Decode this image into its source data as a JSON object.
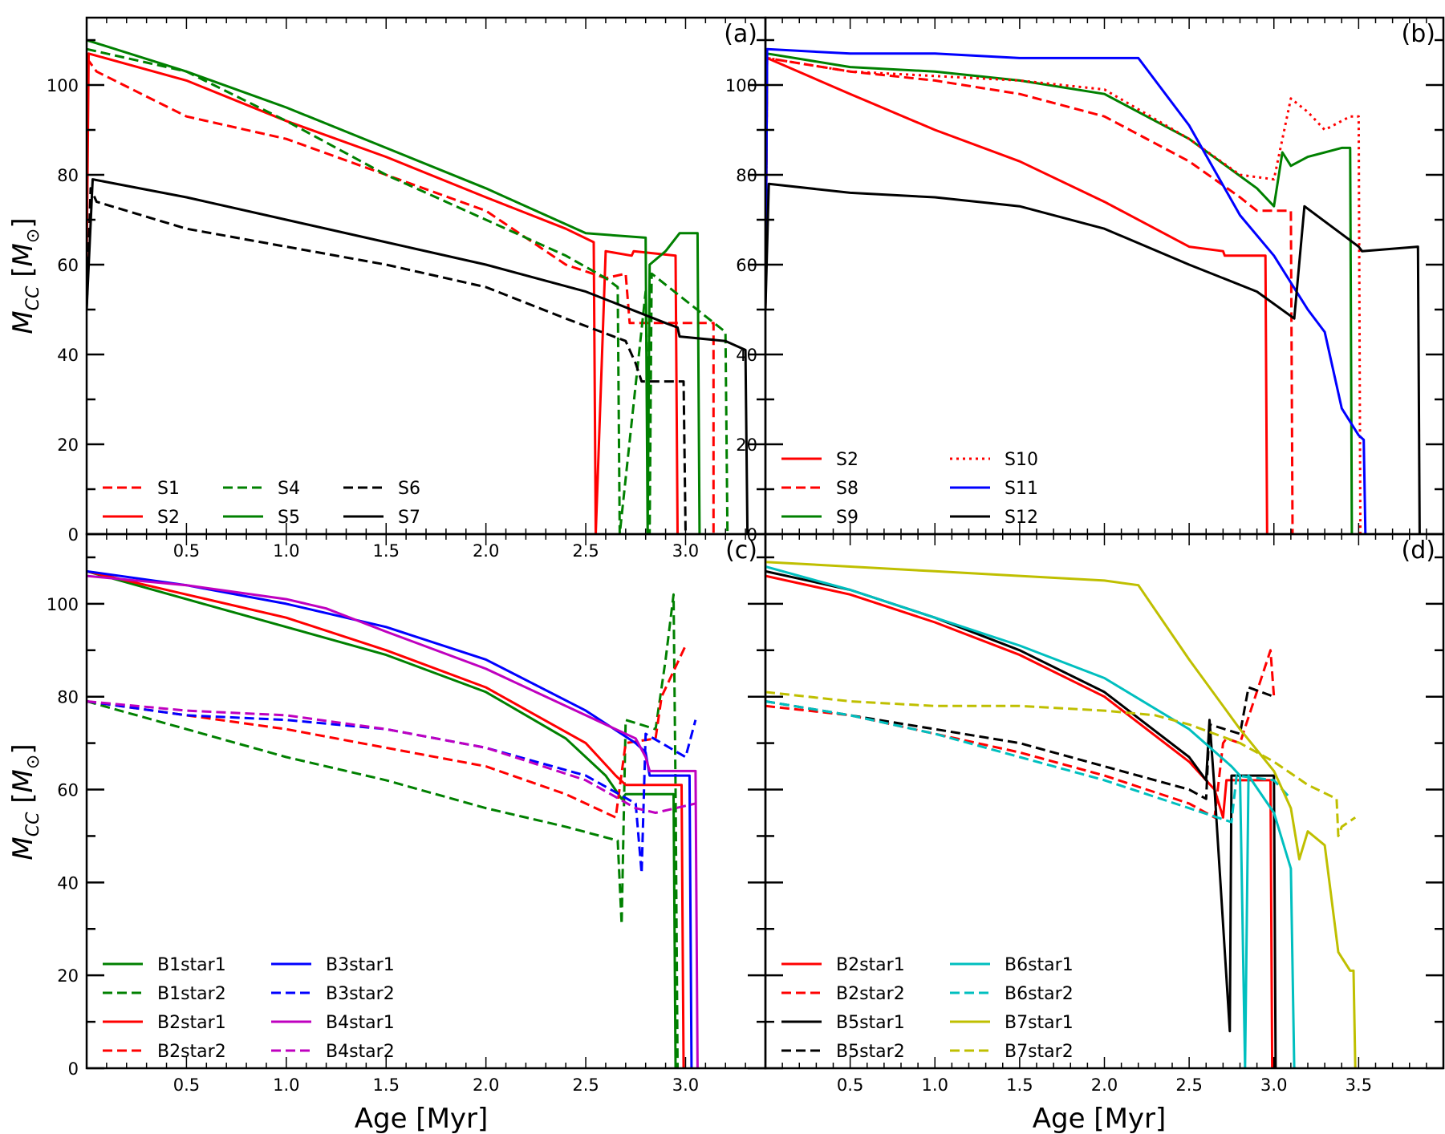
{
  "figure": {
    "xlabel": "Age [Myr]",
    "ylabel_main": "M",
    "ylabel_sub": "CC",
    "ylabel_unit_open": " [",
    "ylabel_unit_main": "M",
    "ylabel_unit_sub": "⊙",
    "ylabel_unit_close": "]"
  },
  "colors": {
    "red": "#ff0000",
    "green": "#008000",
    "black": "#000000",
    "blue": "#0000ff",
    "magenta": "#bf00bf",
    "cyan": "#00bfbf",
    "olive": "#bfbf00"
  },
  "chart_data": [
    {
      "type": "line",
      "panel": "(a)",
      "xlim": [
        0,
        3.4
      ],
      "ylim": [
        0,
        115
      ],
      "xticks": [
        "0.5",
        "1.0",
        "1.5",
        "2.0",
        "2.5",
        "3.0"
      ],
      "yticks": [
        "0",
        "20",
        "40",
        "60",
        "80",
        "100"
      ],
      "legend_placement": "lower-left",
      "series": [
        {
          "name": "S1",
          "color": "#ff0000",
          "style": "dashed",
          "x": [
            0,
            0.05,
            0.5,
            1.0,
            1.5,
            2.0,
            2.4,
            2.6,
            2.7,
            2.72,
            2.72,
            3.14,
            3.14,
            3.16
          ],
          "y": [
            106,
            103,
            93,
            88,
            80,
            72,
            60,
            57,
            58,
            47,
            47,
            47,
            0,
            0
          ]
        },
        {
          "name": "S2",
          "color": "#ff0000",
          "style": "solid",
          "x": [
            0,
            0.01,
            0.5,
            1.0,
            1.5,
            2.0,
            2.4,
            2.54,
            2.55,
            2.6,
            2.73,
            2.74,
            2.95,
            2.96
          ],
          "y": [
            60,
            107,
            101,
            92,
            84,
            75,
            68,
            65,
            0,
            63,
            62,
            63,
            62,
            0
          ]
        },
        {
          "name": "S4",
          "color": "#008000",
          "style": "dashed",
          "x": [
            0,
            0.5,
            1.0,
            1.5,
            2.0,
            2.4,
            2.6,
            2.66,
            2.67,
            2.8,
            2.82,
            2.83,
            3.2,
            3.21
          ],
          "y": [
            108,
            103,
            92,
            80,
            70,
            62,
            57,
            55,
            0,
            54,
            0,
            58,
            45,
            0
          ]
        },
        {
          "name": "S5",
          "color": "#008000",
          "style": "solid",
          "x": [
            0,
            0.5,
            1.0,
            1.5,
            2.0,
            2.5,
            2.8,
            2.81,
            2.82,
            2.9,
            2.97,
            3.06,
            3.07
          ],
          "y": [
            110,
            103,
            95,
            86,
            77,
            67,
            66,
            0,
            60,
            63,
            67,
            67,
            0
          ]
        },
        {
          "name": "S6",
          "color": "#000000",
          "style": "dashed",
          "x": [
            0,
            0.02,
            0.05,
            0.5,
            1.0,
            1.5,
            2.0,
            2.4,
            2.7,
            2.75,
            2.78,
            2.99,
            3.0
          ],
          "y": [
            50,
            77,
            74,
            68,
            64,
            60,
            55,
            48,
            43,
            38,
            34,
            34,
            0
          ]
        },
        {
          "name": "S7",
          "color": "#000000",
          "style": "solid",
          "x": [
            0,
            0.03,
            0.5,
            1.0,
            1.5,
            2.0,
            2.5,
            2.9,
            2.96,
            2.97,
            3.2,
            3.3,
            3.31
          ],
          "y": [
            50,
            79,
            75,
            70,
            65,
            60,
            54,
            47,
            46,
            44,
            43,
            41,
            0
          ]
        }
      ]
    },
    {
      "type": "line",
      "panel": "(b)",
      "xlim": [
        0,
        4.0
      ],
      "ylim": [
        0,
        115
      ],
      "xticks": [],
      "yticks": [
        "0",
        "20",
        "40",
        "60",
        "80",
        "100"
      ],
      "legend_placement": "lower-left",
      "series": [
        {
          "name": "S2",
          "color": "#ff0000",
          "style": "solid",
          "x": [
            0,
            0.01,
            0.5,
            1.0,
            1.5,
            2.0,
            2.5,
            2.7,
            2.71,
            2.95,
            2.96
          ],
          "y": [
            50,
            106,
            98,
            90,
            83,
            74,
            64,
            63,
            62,
            62,
            0
          ]
        },
        {
          "name": "S8",
          "color": "#ff0000",
          "style": "dashed",
          "x": [
            0,
            0.01,
            0.5,
            1.0,
            1.5,
            2.0,
            2.5,
            2.8,
            2.9,
            3.0,
            3.1,
            3.11
          ],
          "y": [
            50,
            106,
            103,
            101,
            98,
            93,
            83,
            75,
            72,
            72,
            72,
            0
          ]
        },
        {
          "name": "S9",
          "color": "#008000",
          "style": "solid",
          "x": [
            0,
            0.01,
            0.5,
            1.0,
            1.5,
            2.0,
            2.5,
            2.9,
            3.0,
            3.05,
            3.1,
            3.2,
            3.4,
            3.45,
            3.46
          ],
          "y": [
            50,
            107,
            104,
            103,
            101,
            98,
            88,
            77,
            73,
            85,
            82,
            84,
            86,
            86,
            0
          ]
        },
        {
          "name": "S10",
          "color": "#ff0000",
          "style": "dotted",
          "x": [
            0,
            0.01,
            0.5,
            1.0,
            1.5,
            2.0,
            2.5,
            2.8,
            3.0,
            3.1,
            3.2,
            3.3,
            3.45,
            3.5,
            3.51
          ],
          "y": [
            50,
            106,
            103,
            102,
            101,
            99,
            88,
            80,
            79,
            97,
            94,
            90,
            93,
            93,
            0
          ]
        },
        {
          "name": "S11",
          "color": "#0000ff",
          "style": "solid",
          "x": [
            0,
            0.01,
            0.5,
            1.0,
            1.5,
            2.0,
            2.2,
            2.5,
            2.8,
            3.0,
            3.15,
            3.2,
            3.3,
            3.4,
            3.5,
            3.53,
            3.54
          ],
          "y": [
            50,
            108,
            107,
            107,
            106,
            106,
            106,
            91,
            71,
            62,
            53,
            50,
            45,
            28,
            22,
            21,
            0
          ]
        },
        {
          "name": "S12",
          "color": "#000000",
          "style": "solid",
          "x": [
            0,
            0.02,
            0.5,
            1.0,
            1.5,
            2.0,
            2.5,
            2.9,
            3.12,
            3.18,
            3.5,
            3.52,
            3.85,
            3.86
          ],
          "y": [
            50,
            78,
            76,
            75,
            73,
            68,
            60,
            54,
            48,
            73,
            64,
            63,
            64,
            0
          ]
        }
      ]
    },
    {
      "type": "line",
      "panel": "(c)",
      "xlim": [
        0,
        3.4
      ],
      "ylim": [
        0,
        115
      ],
      "xticks": [
        "0.5",
        "1.0",
        "1.5",
        "2.0",
        "2.5",
        "3.0"
      ],
      "yticks": [
        "0",
        "20",
        "40",
        "60",
        "80",
        "100"
      ],
      "legend_placement": "lower-left",
      "series": [
        {
          "name": "B1star1",
          "color": "#008000",
          "style": "solid",
          "x": [
            0,
            0.5,
            1.0,
            1.5,
            2.0,
            2.4,
            2.6,
            2.68,
            2.7,
            2.9,
            2.94,
            2.95
          ],
          "y": [
            107,
            101,
            95,
            89,
            81,
            71,
            63,
            58,
            59,
            59,
            59,
            0
          ]
        },
        {
          "name": "B1star2",
          "color": "#008000",
          "style": "dashed",
          "x": [
            0,
            0.5,
            1.0,
            1.5,
            2.0,
            2.4,
            2.66,
            2.68,
            2.7,
            2.85,
            2.9,
            2.94,
            2.95,
            2.96
          ],
          "y": [
            79,
            73,
            67,
            62,
            56,
            52,
            49,
            31,
            75,
            73,
            88,
            102,
            60,
            0
          ]
        },
        {
          "name": "B2star1",
          "color": "#ff0000",
          "style": "solid",
          "x": [
            0,
            0.5,
            1.0,
            1.5,
            2.0,
            2.5,
            2.65,
            2.7,
            2.72,
            2.9,
            2.98,
            2.99
          ],
          "y": [
            107,
            102,
            97,
            90,
            82,
            70,
            63,
            61,
            61,
            61,
            61,
            0
          ]
        },
        {
          "name": "B2star2",
          "color": "#ff0000",
          "style": "dashed",
          "x": [
            0,
            0.5,
            1.0,
            1.5,
            2.0,
            2.4,
            2.65,
            2.7,
            2.85,
            2.88,
            3.0
          ],
          "y": [
            79,
            76,
            73,
            69,
            65,
            59,
            54,
            70,
            71,
            80,
            91
          ]
        },
        {
          "name": "B3star1",
          "color": "#0000ff",
          "style": "solid",
          "x": [
            0,
            0.5,
            1.0,
            1.5,
            2.0,
            2.5,
            2.75,
            2.8,
            2.82,
            3.02,
            3.03
          ],
          "y": [
            107,
            104,
            100,
            95,
            88,
            77,
            70,
            68,
            63,
            63,
            0
          ]
        },
        {
          "name": "B3star2",
          "color": "#0000ff",
          "style": "dashed",
          "x": [
            0,
            0.5,
            1.0,
            1.5,
            2.0,
            2.5,
            2.75,
            2.78,
            2.8,
            3.0,
            3.05
          ],
          "y": [
            79,
            76,
            75,
            73,
            69,
            63,
            57,
            42,
            72,
            67,
            75
          ]
        },
        {
          "name": "B4star1",
          "color": "#bf00bf",
          "style": "solid",
          "x": [
            0,
            0.5,
            1.0,
            1.2,
            1.5,
            2.0,
            2.5,
            2.75,
            2.8,
            2.82,
            3.05,
            3.06
          ],
          "y": [
            106,
            104,
            101,
            99,
            94,
            86,
            76,
            71,
            67,
            64,
            64,
            0
          ]
        },
        {
          "name": "B4star2",
          "color": "#bf00bf",
          "style": "dashed",
          "x": [
            0,
            0.5,
            1.0,
            1.5,
            2.0,
            2.5,
            2.75,
            2.85,
            3.05
          ],
          "y": [
            79,
            77,
            76,
            73,
            69,
            62,
            56,
            55,
            57
          ]
        }
      ]
    },
    {
      "type": "line",
      "panel": "(d)",
      "xlim": [
        0,
        4.0
      ],
      "ylim": [
        0,
        115
      ],
      "xticks": [
        "0.5",
        "1.0",
        "1.5",
        "2.0",
        "2.5",
        "3.0",
        "3.5"
      ],
      "yticks": [],
      "legend_placement": "lower-left",
      "series": [
        {
          "name": "B2star1",
          "color": "#ff0000",
          "style": "solid",
          "x": [
            0,
            0.5,
            1.0,
            1.5,
            2.0,
            2.5,
            2.65,
            2.7,
            2.72,
            2.95,
            2.98,
            2.99
          ],
          "y": [
            106,
            102,
            96,
            89,
            80,
            66,
            60,
            54,
            62,
            62,
            62,
            0
          ]
        },
        {
          "name": "B2star2",
          "color": "#ff0000",
          "style": "dashed",
          "x": [
            0,
            0.5,
            1.0,
            1.5,
            2.0,
            2.5,
            2.65,
            2.7,
            2.72,
            2.8,
            2.98,
            3.0
          ],
          "y": [
            78,
            76,
            72,
            68,
            63,
            57,
            54,
            70,
            71,
            70,
            90,
            80
          ]
        },
        {
          "name": "B5star1",
          "color": "#000000",
          "style": "solid",
          "x": [
            0,
            0.5,
            1.0,
            1.5,
            2.0,
            2.5,
            2.6,
            2.62,
            2.65,
            2.74,
            2.75,
            2.98,
            3.0,
            3.01
          ],
          "y": [
            107,
            103,
            97,
            90,
            81,
            67,
            62,
            75,
            60,
            8,
            63,
            63,
            63,
            0
          ]
        },
        {
          "name": "B5star2",
          "color": "#000000",
          "style": "dashed",
          "x": [
            0,
            0.5,
            1.0,
            1.5,
            2.0,
            2.5,
            2.6,
            2.62,
            2.8,
            2.85,
            3.0
          ],
          "y": [
            79,
            76,
            73,
            70,
            65,
            60,
            58,
            74,
            72,
            82,
            80
          ]
        },
        {
          "name": "B6star1",
          "color": "#00bfbf",
          "style": "solid",
          "x": [
            0,
            0.5,
            1.0,
            1.5,
            2.0,
            2.5,
            2.75,
            2.8,
            2.83,
            2.85,
            3.0,
            3.1,
            3.12,
            3.13
          ],
          "y": [
            108,
            103,
            97,
            91,
            84,
            73,
            65,
            63,
            0,
            63,
            55,
            43,
            0,
            0
          ]
        },
        {
          "name": "B6star2",
          "color": "#00bfbf",
          "style": "dashed",
          "x": [
            0,
            0.5,
            1.0,
            1.5,
            2.0,
            2.5,
            2.75,
            2.78,
            3.0,
            3.1
          ],
          "y": [
            79,
            76,
            72,
            67,
            62,
            56,
            53,
            63,
            62,
            58
          ]
        },
        {
          "name": "B7star1",
          "color": "#bfbf00",
          "style": "solid",
          "x": [
            0,
            0.5,
            1.0,
            1.5,
            2.0,
            2.2,
            2.5,
            2.8,
            3.0,
            3.1,
            3.15,
            3.2,
            3.3,
            3.38,
            3.45,
            3.47,
            3.48
          ],
          "y": [
            109,
            108,
            107,
            106,
            105,
            104,
            88,
            73,
            64,
            56,
            45,
            51,
            48,
            25,
            21,
            21,
            0
          ]
        },
        {
          "name": "B7star2",
          "color": "#bfbf00",
          "style": "dashed",
          "x": [
            0,
            0.5,
            1.0,
            1.5,
            2.0,
            2.3,
            2.5,
            2.8,
            3.0,
            3.2,
            3.37,
            3.38,
            3.4,
            3.48
          ],
          "y": [
            81,
            79,
            78,
            78,
            77,
            76,
            74,
            70,
            66,
            61,
            58,
            50,
            52,
            54
          ]
        }
      ]
    }
  ],
  "legends": [
    {
      "panel_index": 0,
      "columns": 3,
      "entries": [
        [
          "S1",
          "S2"
        ],
        [
          "S4",
          "S5"
        ],
        [
          "S6",
          "S7"
        ]
      ]
    },
    {
      "panel_index": 1,
      "columns": 2,
      "entries": [
        [
          "S2",
          "S8",
          "S9"
        ],
        [
          "S10",
          "S11",
          "S12"
        ]
      ]
    },
    {
      "panel_index": 2,
      "columns": 2,
      "entries": [
        [
          "B1star1",
          "B1star2",
          "B2star1",
          "B2star2"
        ],
        [
          "B3star1",
          "B3star2",
          "B4star1",
          "B4star2"
        ]
      ]
    },
    {
      "panel_index": 3,
      "columns": 2,
      "entries": [
        [
          "B2star1",
          "B2star2",
          "B5star1",
          "B5star2"
        ],
        [
          "B6star1",
          "B6star2",
          "B7star1",
          "B7star2"
        ]
      ]
    }
  ]
}
